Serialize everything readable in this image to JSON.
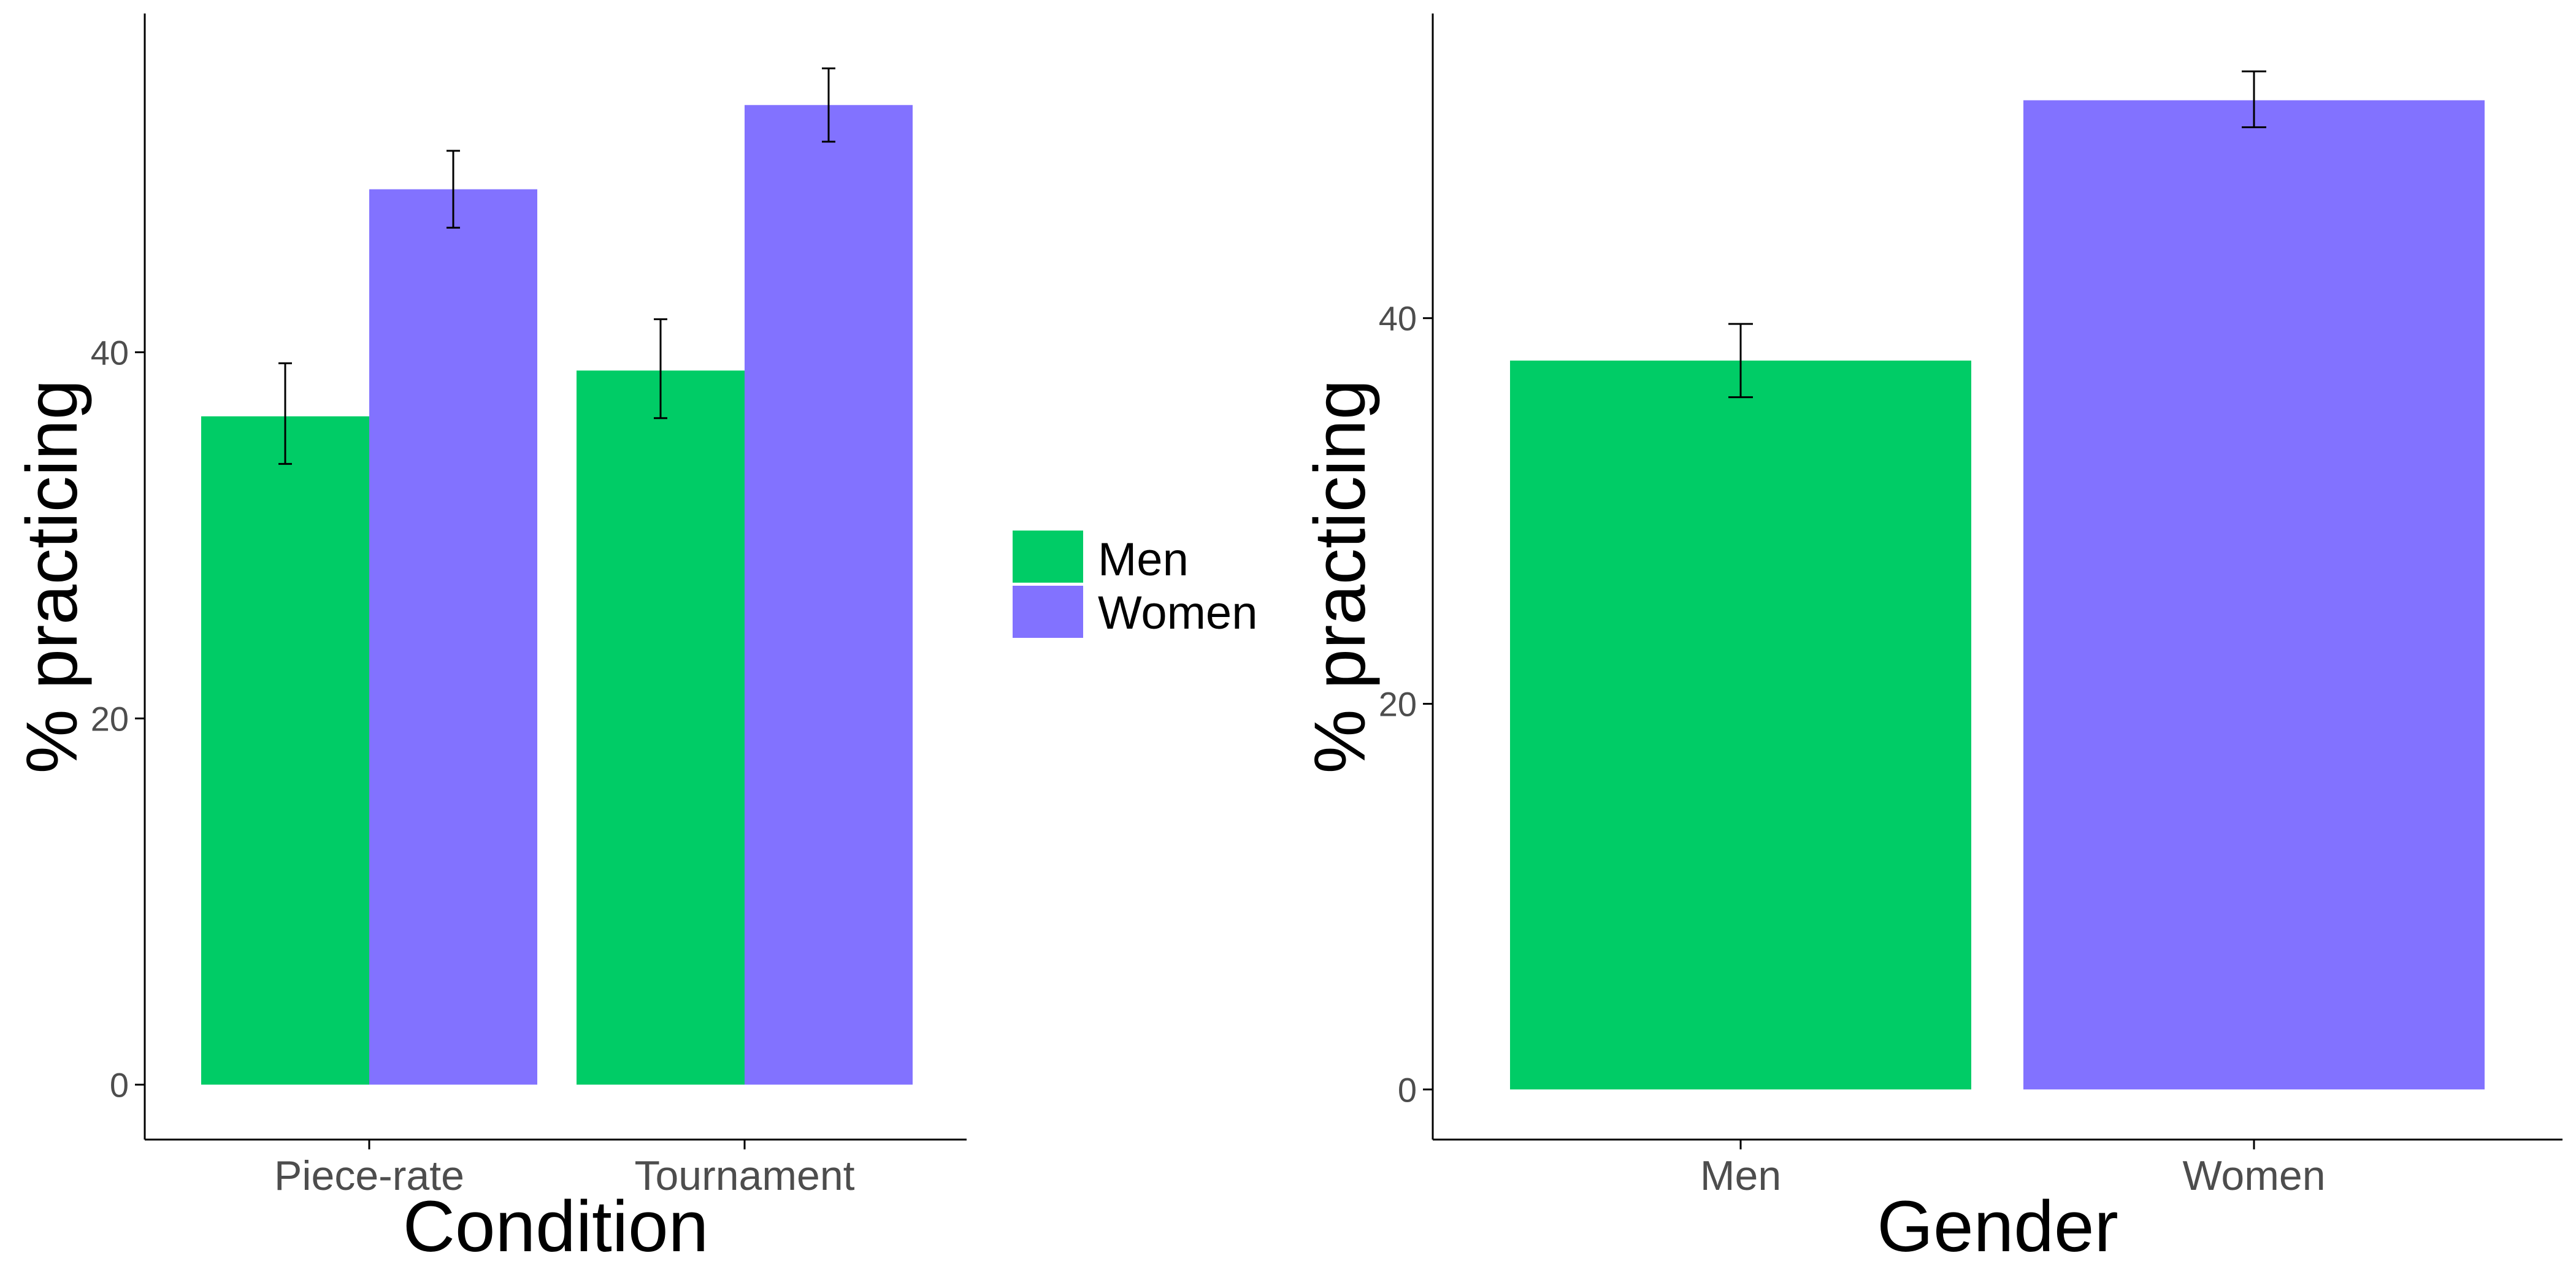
{
  "colors": {
    "men": "#00CC66",
    "women": "#8272FF",
    "axis": "#000000",
    "tick_text": "#4d4d4d"
  },
  "legend": {
    "items": [
      "Men",
      "Women"
    ],
    "position": "between-panels"
  },
  "chart_data": [
    {
      "type": "bar",
      "grouping": "dodged",
      "title": "",
      "xlabel": "Condition",
      "ylabel": "% practicing",
      "categories": [
        "Piece-rate",
        "Tournament"
      ],
      "yticks": [
        "0",
        "20",
        "40"
      ],
      "ylim": [
        -3,
        58.5
      ],
      "grid": false,
      "series": [
        {
          "name": "Men",
          "values": [
            36.5,
            39.0
          ],
          "err_low": [
            33.9,
            36.4
          ],
          "err_high": [
            39.4,
            41.8
          ]
        },
        {
          "name": "Women",
          "values": [
            48.9,
            53.5
          ],
          "err_low": [
            46.8,
            51.5
          ],
          "err_high": [
            51.0,
            55.5
          ]
        }
      ]
    },
    {
      "type": "bar",
      "title": "",
      "xlabel": "Gender",
      "ylabel": "% practicing",
      "categories": [
        "Men",
        "Women"
      ],
      "yticks": [
        "0",
        "20",
        "40"
      ],
      "ylim": [
        -2.6,
        55.8
      ],
      "grid": false,
      "values": [
        37.8,
        51.3
      ],
      "err_low": [
        35.9,
        49.9
      ],
      "err_high": [
        39.7,
        52.8
      ]
    }
  ]
}
